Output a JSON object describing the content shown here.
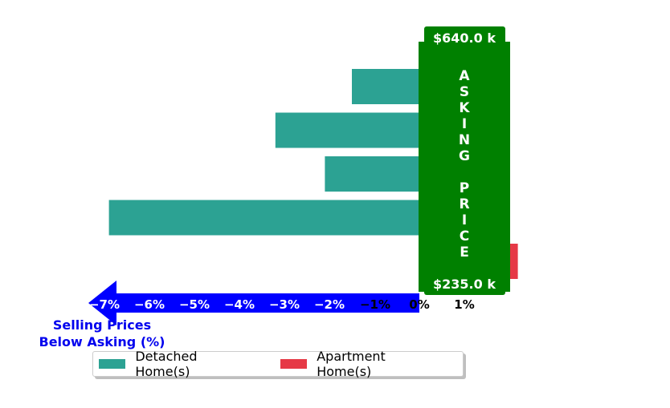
{
  "chart_data": {
    "type": "bar",
    "orientation": "horizontal",
    "series": [
      {
        "name": "Detached Home(s)",
        "color": "#2ca293",
        "values": [
          -1.5,
          -3.2,
          -2.1,
          -6.9,
          null
        ]
      },
      {
        "name": "Apartment Home(s)",
        "color": "#e63946",
        "values": [
          null,
          null,
          null,
          null,
          1.2
        ]
      }
    ],
    "xlim": [
      -7.6,
      1.3
    ],
    "xticks": [
      "−7%",
      "−6%",
      "−5%",
      "−4%",
      "−3%",
      "−2%",
      "−1%",
      "0%",
      "1%"
    ],
    "xtick_values": [
      -7,
      -6,
      -5,
      -4,
      -3,
      -2,
      -1,
      0,
      1
    ],
    "xlabel": "Selling Prices\nBelow Asking (%)",
    "band": {
      "label": "ASKING PRICE",
      "top_value": "$640.0 k",
      "bottom_value": "$235.0 k",
      "color": "#008000"
    },
    "arrow_color": "#0000ff",
    "legend_placement": "bottom"
  }
}
